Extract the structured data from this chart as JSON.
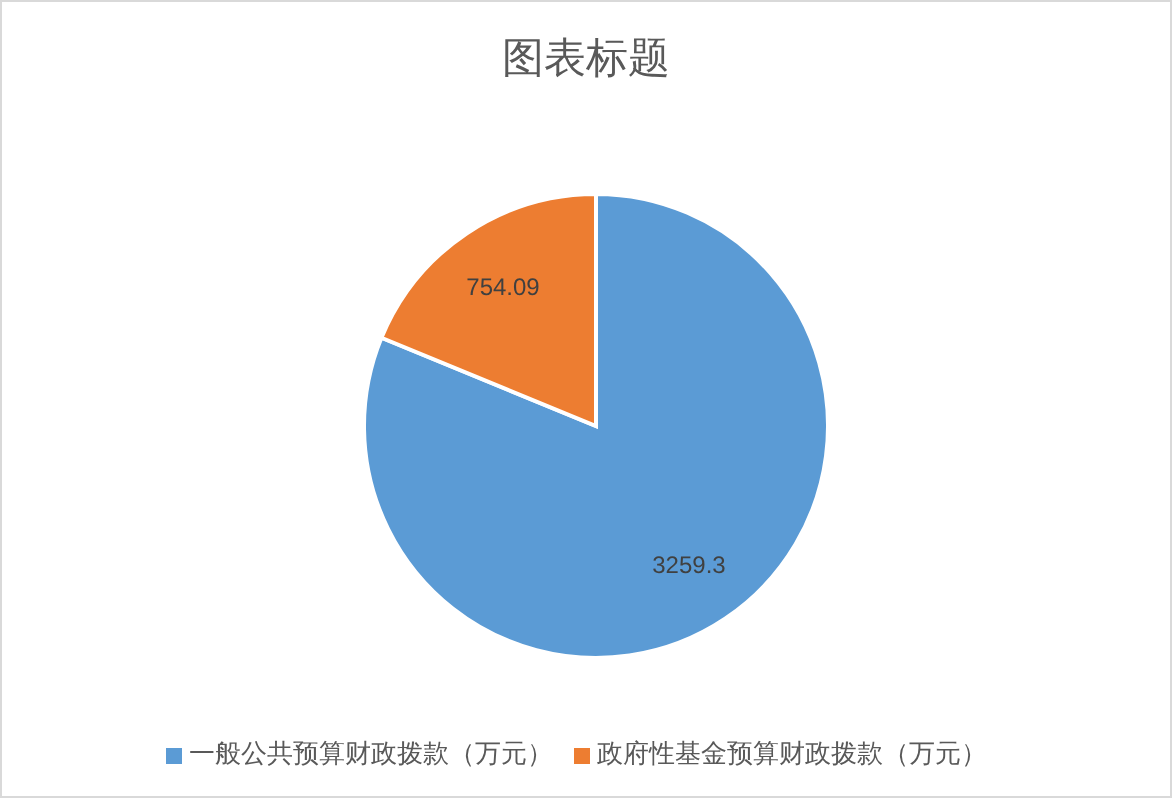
{
  "chart_data": {
    "type": "pie",
    "title": "图表标题",
    "categories": [
      "一般公共预算财政拨款（万元）",
      "政府性基金预算财政拨款（万元）"
    ],
    "values": [
      3259.3,
      754.09
    ],
    "colors": [
      "#5b9bd5",
      "#ed7d31"
    ],
    "data_labels": true,
    "legend": "bottom"
  }
}
